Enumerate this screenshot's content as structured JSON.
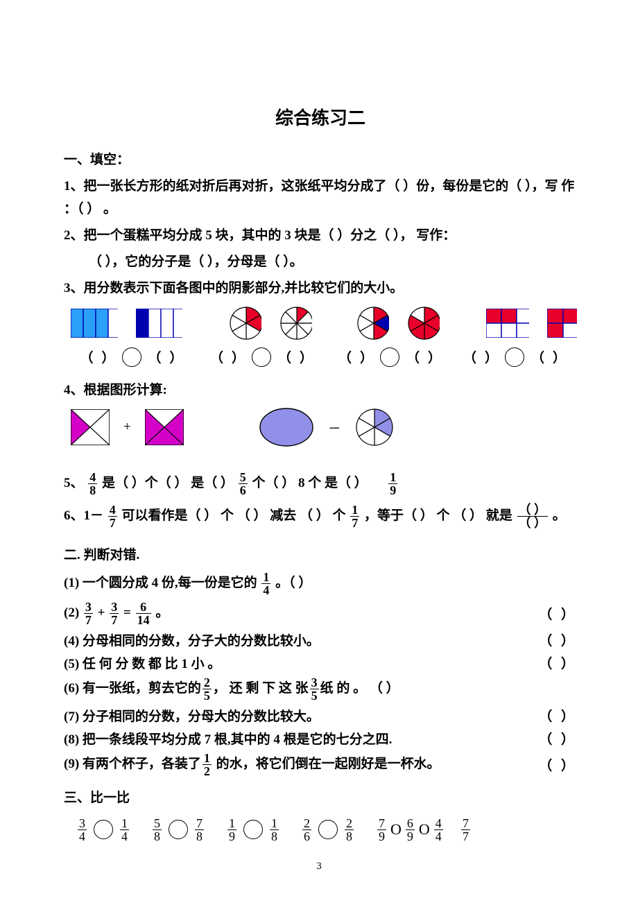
{
  "title": "综合练习二",
  "section1": {
    "heading": "一、填空：",
    "q1": "1、把一张长方形的纸对折后再对折，这张纸平均分成了（  ）份，每份是它的（  ），写 作 ：（  ） 。",
    "q2a": "2、把一个蛋糕平均分成 5 块，其中的 3 块是（  ）分之（  ），   写作：",
    "q2b": "（  ），它的分子是（  ），分母是（  ）。",
    "q3": "3、用分数表示下面各图中的阴影部分,并比较它们的大小。",
    "q3_shapes": {
      "rect1": {
        "cols": 4,
        "rows": 1,
        "fill": [
          0,
          1,
          2
        ],
        "color": "#2aa0f6",
        "border": "#0000b0",
        "w": 72,
        "h": 42
      },
      "rect2": {
        "cols": 4,
        "rows": 1,
        "fill": [
          0
        ],
        "color": "#0000b0",
        "border": "#0000b0",
        "w": 72,
        "h": 42
      },
      "pie1": {
        "slices": 6,
        "fill": [
          0,
          1
        ],
        "colors": [
          "#e8002a",
          "#e8002a"
        ],
        "r": 23
      },
      "pie2": {
        "slices": 8,
        "fill": [
          0
        ],
        "colors": [
          "#e8002a"
        ],
        "r": 23
      },
      "pie3": {
        "slices": 6,
        "fill": [
          0,
          1,
          2
        ],
        "colors": [
          "#e8002a",
          "#0000b0",
          "#e8002a"
        ],
        "r": 23
      },
      "pie4": {
        "slices": 6,
        "fill": [
          0,
          1,
          2,
          3,
          4
        ],
        "colors": [
          "#e8002a",
          "#e8002a",
          "#e8002a",
          "#e8002a",
          "#e8002a"
        ],
        "r": 23
      },
      "grid1": {
        "cols": 3,
        "rows": 2,
        "fill": [
          0,
          1
        ],
        "color": "#e8002a",
        "border": "#0000b0",
        "w": 66,
        "h": 42
      },
      "grid2": {
        "cols": 2,
        "rows": 2,
        "fill": [
          0,
          1,
          2
        ],
        "color": "#e8002a",
        "border": "#0000b0",
        "w": 46,
        "h": 42
      }
    },
    "q3_answer_tokens": {
      "lp": "（",
      "rp": "）"
    },
    "q4": "4、根据图形计算:",
    "q4_shapes": {
      "sqA": {
        "w": 56,
        "h": 52,
        "color": "#d400c8"
      },
      "sqB": {
        "w": 56,
        "h": 52,
        "color": "#d400c8"
      },
      "op_plus": "+",
      "ellipse": {
        "w": 80,
        "h": 58,
        "fill": "#9090e8",
        "stroke": "#000000"
      },
      "op_minus": "－",
      "pieB": {
        "slices": 6,
        "fill": [
          0,
          1
        ],
        "colors": [
          "#9090e8",
          "#9090e8"
        ],
        "r": 26
      }
    },
    "q5": {
      "pre": "5、",
      "f1": {
        "n": "4",
        "d": "8"
      },
      "t1": "是（  ）个（  ）   是（  ）",
      "f2": {
        "n": "5",
        "d": "6"
      },
      "t2": "个（  ）   8 个   是（  ）",
      "f3": {
        "n": "1",
        "d": "9"
      }
    },
    "q6": {
      "pre": "6、1－",
      "f1": {
        "n": "4",
        "d": "7"
      },
      "t1": " 可以看作是（ ） 个 （ ） 减去 （ ） 个",
      "f2": {
        "n": "1",
        "d": "7"
      },
      "t2": "，等于（ ） 个 （ ） 就是 ",
      "f3": {
        "n": "（ ）",
        "d": "（ ）"
      },
      "t3": " 。"
    }
  },
  "section2": {
    "heading": "二. 判断对错.",
    "items": [
      {
        "label": "(1)",
        "text_a": "一个圆分成 4 份,每一份是它的 ",
        "frac": {
          "n": "1",
          "d": "4"
        },
        "text_b": " 。（  ）",
        "right": ""
      },
      {
        "label": "(2)",
        "text_a": "",
        "frac2a": {
          "n": "3",
          "d": "7"
        },
        "plus": " + ",
        "frac2b": {
          "n": "3",
          "d": "7"
        },
        "eq": " =  ",
        "frac2c": {
          "n": "6",
          "d": "14"
        },
        "text_b": " 。",
        "right": "（    ）"
      },
      {
        "label": "(4)",
        "text_a": "分母相同的分数，分子大的分数比较小。",
        "right": "（    ）"
      },
      {
        "label": "(5)",
        "text_a": " 任 何 分 数 都 比 1 小 。",
        "right": "（    ）"
      },
      {
        "label": "(6)",
        "text_a": "有一张纸，剪去它的",
        "frac": {
          "n": "2",
          "d": "5"
        },
        "text_b": "， 还 剩 下 这 张",
        "frac_b": {
          "n": "3",
          "d": "5"
        },
        "text_c": "纸 的 。   （ ）",
        "right": ""
      },
      {
        "label": "(7)",
        "text_a": "分子相同的分数，分母大的分数比较大。",
        "right": "（    ）"
      },
      {
        "label": "(8)",
        "text_a": "把一条线段平均分成 7 根,其中的 4 根是它的七分之四.",
        "right": "（    ）"
      },
      {
        "label": "(9)",
        "text_a": "有两个杯子，各装了",
        "frac": {
          "n": "1",
          "d": "2"
        },
        "text_b": " 的水，将它们倒在一起刚好是一杯水。",
        "right": "（  ）"
      }
    ]
  },
  "section3": {
    "heading": "三、比一比",
    "items": [
      {
        "a": {
          "n": "3",
          "d": "4"
        },
        "b": {
          "n": "1",
          "d": "4"
        }
      },
      {
        "a": {
          "n": "5",
          "d": "8"
        },
        "b": {
          "n": "7",
          "d": "8"
        }
      },
      {
        "a": {
          "n": "1",
          "d": "9"
        },
        "b": {
          "n": "1",
          "d": "8"
        }
      },
      {
        "a": {
          "n": "2",
          "d": "6"
        },
        "b": {
          "n": "2",
          "d": "8"
        }
      }
    ],
    "tail": [
      {
        "n": "7",
        "d": "9"
      },
      {
        "n": "6",
        "d": "9"
      },
      {
        "n": "4",
        "d": "4"
      },
      {
        "n": "7",
        "d": "7"
      }
    ]
  },
  "pagenum": "3"
}
